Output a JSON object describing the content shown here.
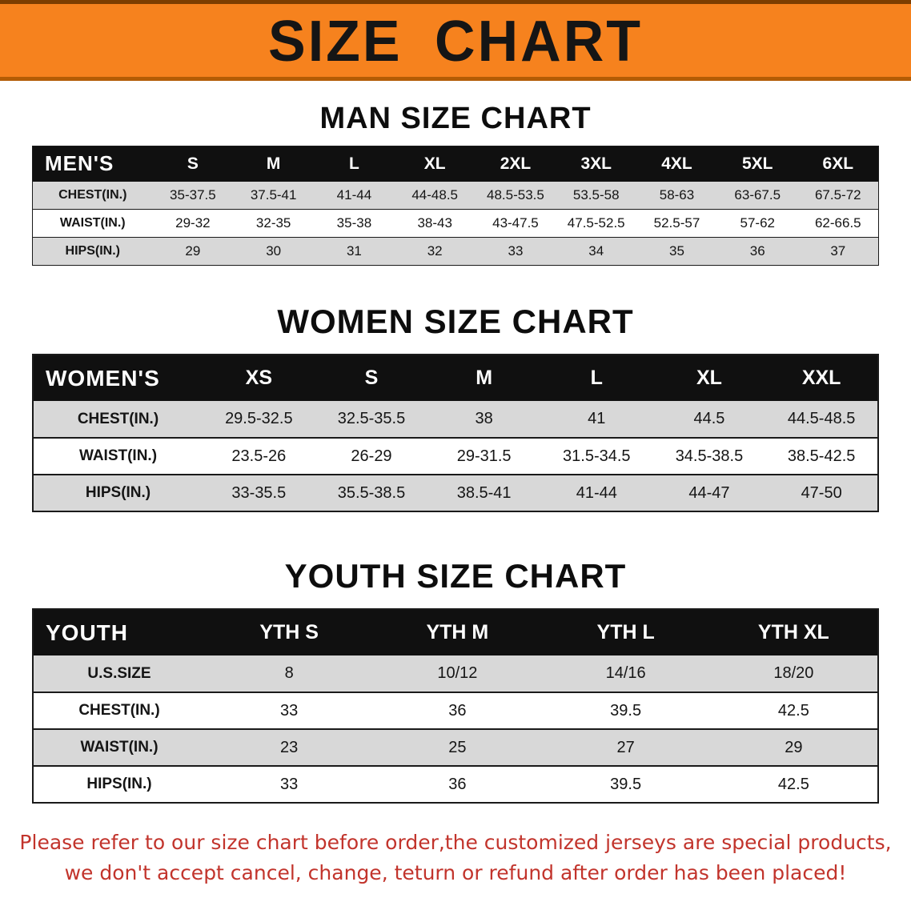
{
  "banner": {
    "title": "SIZE CHART"
  },
  "colors": {
    "banner_bg": "#F6821E",
    "banner_edge": "#7C3D00",
    "banner_edge_light": "#B35C05",
    "table_header_bg": "#101010",
    "table_header_text": "#FFFFFF",
    "row_shaded_bg": "#D8D8D8",
    "table_border": "#1A1A1A",
    "disclaimer_text": "#C2342C"
  },
  "chart_data": [
    {
      "type": "table",
      "key": "men",
      "title": "MAN SIZE CHART",
      "columns": [
        "MEN'S",
        "S",
        "M",
        "L",
        "XL",
        "2XL",
        "3XL",
        "4XL",
        "5XL",
        "6XL"
      ],
      "rows": [
        [
          "CHEST(IN.)",
          "35-37.5",
          "37.5-41",
          "41-44",
          "44-48.5",
          "48.5-53.5",
          "53.5-58",
          "58-63",
          "63-67.5",
          "67.5-72"
        ],
        [
          "WAIST(IN.)",
          "29-32",
          "32-35",
          "35-38",
          "38-43",
          "43-47.5",
          "47.5-52.5",
          "52.5-57",
          "57-62",
          "62-66.5"
        ],
        [
          "HIPS(IN.)",
          "29",
          "30",
          "31",
          "32",
          "33",
          "34",
          "35",
          "36",
          "37"
        ]
      ]
    },
    {
      "type": "table",
      "key": "women",
      "title": "WOMEN SIZE CHART",
      "columns": [
        "WOMEN'S",
        "XS",
        "S",
        "M",
        "L",
        "XL",
        "XXL"
      ],
      "rows": [
        [
          "CHEST(IN.)",
          "29.5-32.5",
          "32.5-35.5",
          "38",
          "41",
          "44.5",
          "44.5-48.5"
        ],
        [
          "WAIST(IN.)",
          "23.5-26",
          "26-29",
          "29-31.5",
          "31.5-34.5",
          "34.5-38.5",
          "38.5-42.5"
        ],
        [
          "HIPS(IN.)",
          "33-35.5",
          "35.5-38.5",
          "38.5-41",
          "41-44",
          "44-47",
          "47-50"
        ]
      ]
    },
    {
      "type": "table",
      "key": "youth",
      "title": "YOUTH SIZE CHART",
      "columns": [
        "YOUTH",
        "YTH S",
        "YTH M",
        "YTH L",
        "YTH XL"
      ],
      "rows": [
        [
          "U.S.SIZE",
          "8",
          "10/12",
          "14/16",
          "18/20"
        ],
        [
          "CHEST(IN.)",
          "33",
          "36",
          "39.5",
          "42.5"
        ],
        [
          "WAIST(IN.)",
          "23",
          "25",
          "27",
          "29"
        ],
        [
          "HIPS(IN.)",
          "33",
          "36",
          "39.5",
          "42.5"
        ]
      ]
    }
  ],
  "disclaimer": {
    "line1": "Please refer to our size chart before order,the customized jerseys are special products,",
    "line2": "we don't accept cancel, change, teturn or refund after order has been placed!"
  }
}
